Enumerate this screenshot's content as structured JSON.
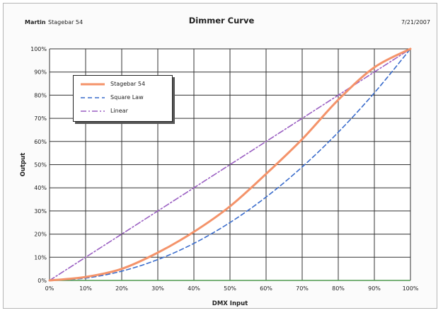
{
  "header": {
    "brand": "Martin",
    "model": "Stagebar 54",
    "title": "Dimmer Curve",
    "date": "7/21/2007"
  },
  "colors": {
    "stagebar": "#f4936a",
    "square": "#3a6ccc",
    "linear": "#9a5fc2",
    "grid": "#333333",
    "plot_bg": "#ffffff",
    "baseline": "#4f9a4f"
  },
  "chart_data": {
    "type": "line",
    "title": "Dimmer Curve",
    "xlabel": "DMX Input",
    "ylabel": "Output",
    "x_ticks": [
      "0%",
      "10%",
      "20%",
      "30%",
      "40%",
      "50%",
      "60%",
      "70%",
      "80%",
      "90%",
      "100%"
    ],
    "y_ticks": [
      "0%",
      "10%",
      "20%",
      "30%",
      "40%",
      "50%",
      "60%",
      "70%",
      "80%",
      "90%",
      "100%"
    ],
    "xlim": [
      0,
      100
    ],
    "ylim": [
      0,
      100
    ],
    "grid": true,
    "legend": "top-left",
    "x": [
      0,
      10,
      20,
      30,
      40,
      50,
      60,
      70,
      80,
      90,
      100
    ],
    "series": [
      {
        "name": "Stagebar 54",
        "style": "solid",
        "values": [
          0,
          1.5,
          5,
          12,
          21,
          32,
          46,
          61,
          78,
          92,
          100
        ]
      },
      {
        "name": "Square Law",
        "style": "dashed",
        "values": [
          0,
          1,
          4,
          9,
          16,
          25,
          36,
          49,
          64,
          81,
          100
        ]
      },
      {
        "name": "Linear",
        "style": "dash-dot",
        "values": [
          0,
          10,
          20,
          30,
          40,
          50,
          60,
          70,
          80,
          90,
          100
        ]
      }
    ]
  }
}
